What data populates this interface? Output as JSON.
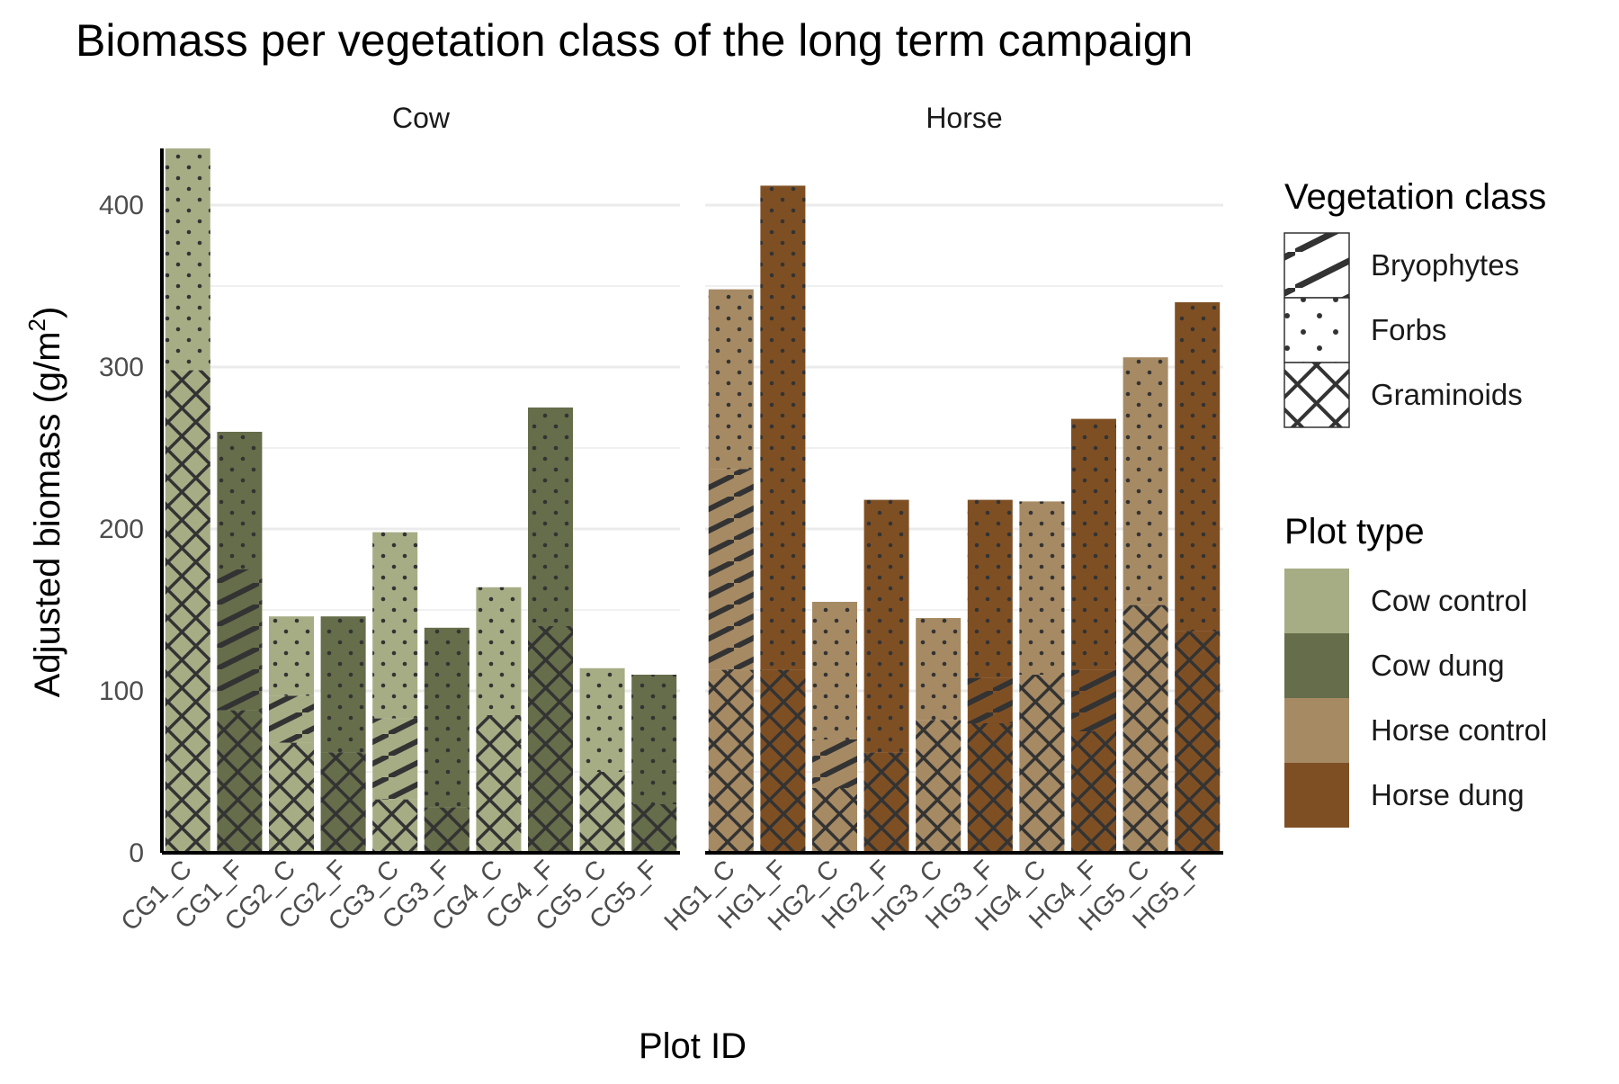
{
  "chart_data": {
    "type": "bar",
    "stacked": true,
    "title": "Biomass per vegetation class of the long term campaign",
    "xlabel": "Plot ID",
    "ylabel": "Adjusted biomass (g/m2)",
    "ylabel_main": "Adjusted biomass (g/m",
    "ylabel_sup": "2",
    "ylabel_tail": ")",
    "ylim": [
      0,
      435
    ],
    "yticks": [
      0,
      100,
      200,
      300,
      400
    ],
    "grid": true,
    "legend_position": "right",
    "stack_order": [
      "Graminoids",
      "Bryophytes",
      "Forbs"
    ],
    "panels": [
      {
        "name": "Cow",
        "plots": [
          {
            "id": "CG1_C",
            "type": "Cow control",
            "Graminoids": 298,
            "Bryophytes": 0,
            "Forbs": 137
          },
          {
            "id": "CG1_F",
            "type": "Cow dung",
            "Graminoids": 88,
            "Bryophytes": 87,
            "Forbs": 85
          },
          {
            "id": "CG2_C",
            "type": "Cow control",
            "Graminoids": 68,
            "Bryophytes": 29,
            "Forbs": 49
          },
          {
            "id": "CG2_F",
            "type": "Cow dung",
            "Graminoids": 62,
            "Bryophytes": 0,
            "Forbs": 84
          },
          {
            "id": "CG3_C",
            "type": "Cow control",
            "Graminoids": 33,
            "Bryophytes": 50,
            "Forbs": 115
          },
          {
            "id": "CG3_F",
            "type": "Cow dung",
            "Graminoids": 28,
            "Bryophytes": 0,
            "Forbs": 111
          },
          {
            "id": "CG4_C",
            "type": "Cow control",
            "Graminoids": 85,
            "Bryophytes": 0,
            "Forbs": 79
          },
          {
            "id": "CG4_F",
            "type": "Cow dung",
            "Graminoids": 140,
            "Bryophytes": 0,
            "Forbs": 135
          },
          {
            "id": "CG5_C",
            "type": "Cow control",
            "Graminoids": 50,
            "Bryophytes": 0,
            "Forbs": 64
          },
          {
            "id": "CG5_F",
            "type": "Cow dung",
            "Graminoids": 30,
            "Bryophytes": 0,
            "Forbs": 80
          }
        ]
      },
      {
        "name": "Horse",
        "plots": [
          {
            "id": "HG1_C",
            "type": "Horse control",
            "Graminoids": 113,
            "Bryophytes": 124,
            "Forbs": 111
          },
          {
            "id": "HG1_F",
            "type": "Horse dung",
            "Graminoids": 113,
            "Bryophytes": 0,
            "Forbs": 299
          },
          {
            "id": "HG2_C",
            "type": "Horse control",
            "Graminoids": 40,
            "Bryophytes": 30,
            "Forbs": 85
          },
          {
            "id": "HG2_F",
            "type": "Horse dung",
            "Graminoids": 62,
            "Bryophytes": 0,
            "Forbs": 156
          },
          {
            "id": "HG3_C",
            "type": "Horse control",
            "Graminoids": 82,
            "Bryophytes": 0,
            "Forbs": 63
          },
          {
            "id": "HG3_F",
            "type": "Horse dung",
            "Graminoids": 80,
            "Bryophytes": 28,
            "Forbs": 110
          },
          {
            "id": "HG4_C",
            "type": "Horse control",
            "Graminoids": 110,
            "Bryophytes": 0,
            "Forbs": 107
          },
          {
            "id": "HG4_F",
            "type": "Horse dung",
            "Graminoids": 75,
            "Bryophytes": 38,
            "Forbs": 155
          },
          {
            "id": "HG5_C",
            "type": "Horse control",
            "Graminoids": 153,
            "Bryophytes": 0,
            "Forbs": 153
          },
          {
            "id": "HG5_F",
            "type": "Horse dung",
            "Graminoids": 137,
            "Bryophytes": 0,
            "Forbs": 203
          }
        ]
      }
    ],
    "legend_vegetation": {
      "title": "Vegetation class",
      "items": [
        {
          "label": "Bryophytes",
          "pattern": "stripes"
        },
        {
          "label": "Forbs",
          "pattern": "dots"
        },
        {
          "label": "Graminoids",
          "pattern": "crosshatch"
        }
      ]
    },
    "legend_plot_type": {
      "title": "Plot type",
      "items": [
        {
          "label": "Cow control",
          "color": "#a6ad85"
        },
        {
          "label": "Cow dung",
          "color": "#656d4a"
        },
        {
          "label": "Horse control",
          "color": "#a68a64"
        },
        {
          "label": "Horse dung",
          "color": "#7f4f24"
        }
      ]
    }
  }
}
